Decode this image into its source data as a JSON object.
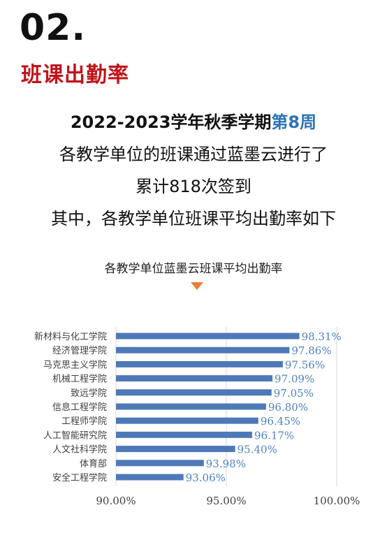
{
  "header": {
    "section_number": "02.",
    "section_title": "班课出勤率"
  },
  "intro": {
    "line1_prefix": "2022-2023学年秋季学期",
    "line1_highlight": "第8周",
    "line2": "各教学单位的班课通过蓝墨云进行了",
    "line3": "累计818次签到",
    "line4": "其中，各教学单位班课平均出勤率如下"
  },
  "colors": {
    "accent_red": "#c0141b",
    "highlight_blue": "#2e74b5",
    "bar_blue": "#4e79b8",
    "label_blue": "#4f81bd",
    "marker_orange": "#ed7d31"
  },
  "chart_data": {
    "type": "bar",
    "orientation": "horizontal",
    "title": "各教学单位蓝墨云班课平均出勤率",
    "categories": [
      "新材料与化工学院",
      "经济管理学院",
      "马克思主义学院",
      "机械工程学院",
      "致远学院",
      "信息工程学院",
      "工程师学院",
      "人工智能研究院",
      "人文社科学院",
      "体育部",
      "安全工程学院"
    ],
    "values": [
      98.31,
      97.86,
      97.56,
      97.09,
      97.05,
      96.8,
      96.45,
      96.17,
      95.4,
      93.98,
      93.06
    ],
    "value_labels": [
      "98.31%",
      "97.86%",
      "97.56%",
      "97.09%",
      "97.05%",
      "96.80%",
      "96.45%",
      "96.17%",
      "95.40%",
      "93.98%",
      "93.06%"
    ],
    "xlim": [
      90,
      100
    ],
    "xticks": [
      90,
      95,
      100
    ],
    "xtick_labels": [
      "90.00%",
      "95.00%",
      "100.00%"
    ],
    "grid": true
  }
}
